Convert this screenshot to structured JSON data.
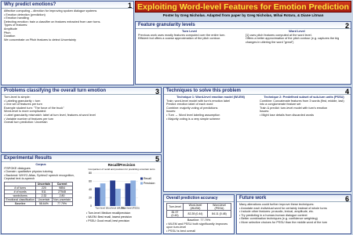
{
  "title": "Exploiting Word-level Features for Emotion Prediction",
  "byline": "Poster by Greg Nicholas.  Adapted from paper by Greg Nicholas, Mihai Rotaru, & Diane Litman",
  "sections": [
    {
      "number": "1",
      "heading": "Why predict emotions?",
      "lines": [
        "Affective computing – direction for improving spoken dialogue systems",
        "• Emotion detection (prediction)",
        "• Emotion handling",
        "Detecting emotion: train a classifier on features extracted from user turns.",
        "Types of features:",
        "Amplitude",
        "Pitch",
        "Duration",
        "We concentrate on Pitch features to detect Uncertainty"
      ]
    },
    {
      "number": "2",
      "heading": "Feature granularity levels",
      "lines": [
        "Turn Level",
        "Previous work uses mostly features computed over the entire turn.",
        "Efficient but offers a coarse approximation of the pitch contour.",
        "Word Level",
        "[1] uses pitch features computed at the word level.",
        "Offers a better approximation of the pitch contour (e.g. captures the big changes in uttering the word \"great\")"
      ]
    },
    {
      "number": "3",
      "heading": "Problems classifying the overall turn emotion",
      "lines": [
        "Turn-level is simple:",
        "• Labeling granularity = turn",
        "• One set of features per turn",
        "Example student turn: \"The force of the truck\"",
        "Word-level is more complicated:",
        "• Label granularity mismatch: label at turn level, features at word level",
        "• Variable number of features per turn",
        "Overall turn prediction: Uncertain"
      ]
    },
    {
      "number": "4",
      "heading": "Techniques to solve this problem",
      "lines": [
        "Technique 1: Word-level emotion model (WLEM)",
        "Train: word-level model with turn's emotion label",
        "Predict: emotion label of each word",
        "Combine: majority voting of predictions",
        "Issues:",
        "• Turn → Word level labeling assumption",
        "• Majority voting is a very simple scheme",
        "Technique 2: Predefined subset of sub-turn units (PSSU)",
        "Combine: Concatenate features from 3 words (first, middle, last) into a conglomerate feature set",
        "Train & predict: turn-level model with turn's emotion",
        "Issues:",
        "• Might lose details from discarded words"
      ]
    },
    {
      "number": "5",
      "heading": "Experimental Results",
      "lines": [
        "Corpus",
        "ITSPOKE dialogues",
        "• Domain: qualitative physics tutoring",
        "• Backend: WHY2-Atlas, Sphinx2 speech recognition, Cepstral text-to-speech"
      ]
    },
    {
      "number": "6",
      "heading": "Future work",
      "lines": [
        "Many alterations could further improve these techniques:",
        "• Annotate each individual word for certainty instead of whole turns",
        "• Include other features: prosodic, lexical, amplitude, etc.",
        "• Try predicting in a human-human dialogue context",
        "• Better combination techniques (e.g. confidence weighting)",
        "• More selective choices for PSSU than the middle word of the turn"
      ]
    }
  ],
  "corpus_table": {
    "header": [
      "",
      "Uncertain",
      "Current"
    ],
    "rows": [
      [
        "# of turns",
        "220",
        "9854"
      ],
      [
        "# of words",
        "511",
        "27548"
      ],
      [
        "words/turns",
        "2.32",
        "2.80"
      ],
      [
        "Emotional classification",
        "Uncertain",
        "Non-uncertain"
      ],
      [
        "Baseline",
        "58.64%",
        "77.79%"
      ]
    ]
  },
  "chart_data": {
    "type": "bar",
    "title": "Recall/Precision",
    "subtitle": "Comparison of recall and precision for predicting uncertain turns",
    "categories": [
      "Turn-level",
      "Word-level (WLEM)",
      "Word-level (PSSU)"
    ],
    "series": [
      {
        "name": "Recall",
        "color": "#2a3f8f",
        "values": [
          45,
          62,
          55
        ]
      },
      {
        "name": "Precision",
        "color": "#8fb0e0",
        "values": [
          55,
          42,
          62
        ]
      }
    ],
    "ylim": [
      0,
      80
    ],
    "yticks": [
      0,
      20,
      40,
      60,
      80
    ],
    "notes": [
      "• Turn-level: Medium recall/precision",
      "• WLEM: Best recall, lowest precision",
      "• PSSU: Good recall, best precision"
    ]
  },
  "accuracy": {
    "heading": "Overall prediction accuracy",
    "header": [
      "Turn-level",
      "Word-level (WLEM)",
      "Word-level (PSSU)"
    ],
    "row": [
      "81.97 (0.43)",
      "82.28 (0.44)",
      "84.11 (0.48)"
    ],
    "baseline": "Baseline: 77.79%",
    "lines": [
      "• WLEM and PSSU both significantly improves upon turn-level",
      "• PSSU is best overall"
    ]
  }
}
